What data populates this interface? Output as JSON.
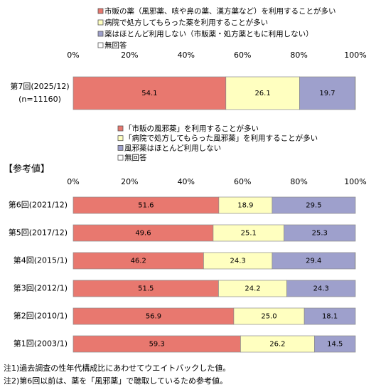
{
  "chart_data": [
    {
      "type": "stacked-bar",
      "categories": [
        "第7回(2025/12)"
      ],
      "sample_sizes": [
        "(n=11160)"
      ],
      "series": [
        {
          "name": "市販の薬（風邪薬、咳や鼻の薬、漢方薬など）を利用することが多い",
          "color": "#e8786f",
          "values": [
            54.1
          ]
        },
        {
          "name": "病院で処方してもらった薬を利用することが多い",
          "color": "#ffffc0",
          "values": [
            26.1
          ]
        },
        {
          "name": "薬はほとんど利用しない（市販薬・処方薬ともに利用しない）",
          "color": "#9ea0cc",
          "values": [
            19.7
          ]
        },
        {
          "name": "無回答",
          "color": "#ffffff",
          "values": [
            0.1
          ]
        }
      ],
      "xlim": [
        0,
        100
      ],
      "xticks": [
        {
          "value": 0,
          "label": "0%"
        },
        {
          "value": 20,
          "label": "20%"
        },
        {
          "value": 40,
          "label": "40%"
        },
        {
          "value": 60,
          "label": "60%"
        },
        {
          "value": 80,
          "label": "80%"
        },
        {
          "value": 100,
          "label": "100%"
        }
      ]
    },
    {
      "type": "stacked-bar",
      "title": "【参考値】",
      "categories": [
        "第6回(2021/12)",
        "第5回(2017/12)",
        "第4回(2015/1)",
        "第3回(2012/1)",
        "第2回(2010/1)",
        "第1回(2003/1)"
      ],
      "series": [
        {
          "name": "「市販の風邪薬」を利用することが多い",
          "color": "#e8786f",
          "values": [
            51.6,
            49.6,
            46.2,
            51.5,
            56.9,
            59.3
          ]
        },
        {
          "name": "「病院で処方してもらった風邪薬」を利用することが多い",
          "color": "#ffffc0",
          "values": [
            18.9,
            25.1,
            24.3,
            24.2,
            25,
            26.2
          ],
          "value_labels": [
            "18.9",
            "25.1",
            "24.3",
            "24.2",
            "25.0",
            "26.2"
          ]
        },
        {
          "name": "風邪薬はほとんど利用しない",
          "color": "#9ea0cc",
          "values": [
            29.5,
            25.3,
            29.4,
            24.3,
            18.1,
            14.5
          ]
        },
        {
          "name": "無回答",
          "color": "#ffffff",
          "values": [
            0,
            0,
            0.1,
            0,
            0,
            0
          ]
        }
      ],
      "xlim": [
        0,
        100
      ],
      "xticks": [
        {
          "value": 0,
          "label": "0%"
        },
        {
          "value": 20,
          "label": "20%"
        },
        {
          "value": 40,
          "label": "40%"
        },
        {
          "value": 60,
          "label": "60%"
        },
        {
          "value": 80,
          "label": "80%"
        },
        {
          "value": 100,
          "label": "100%"
        }
      ]
    }
  ],
  "notes": [
    "注1)過去調査の性年代構成比にあわせてウエイトバックした値。",
    "注2)第6回以前は、薬を「風邪薬」で聴取しているため参考値。"
  ]
}
